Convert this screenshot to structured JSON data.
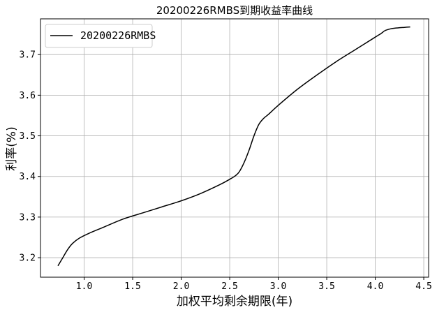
{
  "chart_data": {
    "type": "line",
    "title": "20200226RMBS到期收益率曲线",
    "xlabel": "加权平均剩余期限(年)",
    "ylabel": "利率(%)",
    "xlim": [
      0.55,
      4.55
    ],
    "ylim": [
      3.152,
      3.788
    ],
    "xticks": [
      1.0,
      1.5,
      2.0,
      2.5,
      3.0,
      3.5,
      4.0,
      4.5
    ],
    "xtick_labels": [
      "1.0",
      "1.5",
      "2.0",
      "2.5",
      "3.0",
      "3.5",
      "4.0",
      "4.5"
    ],
    "yticks": [
      3.2,
      3.3,
      3.4,
      3.5,
      3.6,
      3.7
    ],
    "ytick_labels": [
      "3.2",
      "3.3",
      "3.4",
      "3.5",
      "3.6",
      "3.7"
    ],
    "grid": true,
    "legend_position": "top-left",
    "series": [
      {
        "name": "20200226RMBS",
        "color": "#000000",
        "x": [
          0.73,
          0.78,
          0.83,
          0.88,
          0.95,
          1.05,
          1.2,
          1.4,
          1.6,
          1.8,
          2.0,
          2.2,
          2.4,
          2.5,
          2.56,
          2.6,
          2.65,
          2.7,
          2.75,
          2.8,
          2.85,
          2.9,
          3.0,
          3.2,
          3.4,
          3.6,
          3.8,
          4.0,
          4.06,
          4.1,
          4.15,
          4.2,
          4.3,
          4.36
        ],
        "y": [
          3.18,
          3.2,
          3.22,
          3.235,
          3.248,
          3.26,
          3.275,
          3.295,
          3.31,
          3.325,
          3.34,
          3.358,
          3.38,
          3.393,
          3.402,
          3.412,
          3.435,
          3.465,
          3.5,
          3.528,
          3.543,
          3.553,
          3.575,
          3.615,
          3.65,
          3.683,
          3.713,
          3.743,
          3.752,
          3.759,
          3.763,
          3.765,
          3.767,
          3.768
        ]
      }
    ]
  }
}
